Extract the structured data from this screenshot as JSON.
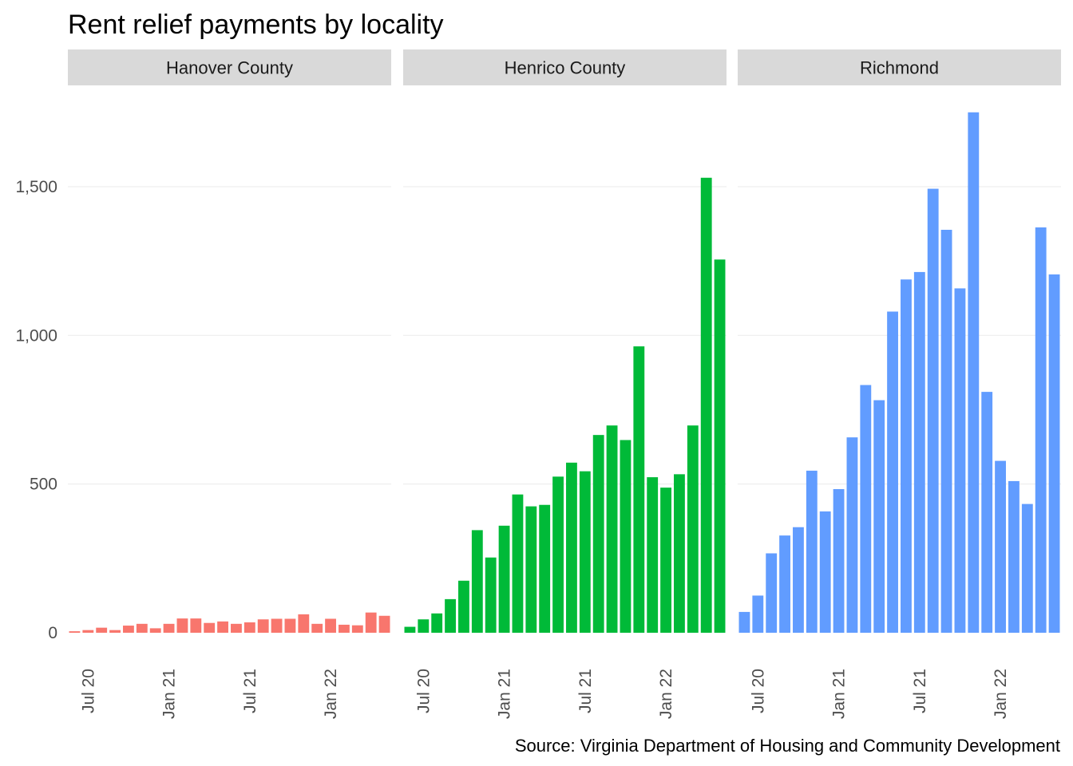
{
  "chart_data": {
    "type": "bar",
    "title": "Rent relief payments by locality",
    "caption": "Source: Virginia Department of Housing and Community Development",
    "xlabel": "",
    "ylabel": "",
    "ylim": [
      0,
      1800
    ],
    "y_ticks": [
      0,
      500,
      1000,
      1500
    ],
    "y_tick_labels": [
      "0",
      "500",
      "1,000",
      "1,500"
    ],
    "x_ticks": [
      "Jul 20",
      "Jan 21",
      "Jul 21",
      "Jan 22"
    ],
    "x_tick_index": [
      1,
      7,
      13,
      19
    ],
    "categories": [
      "Jun 20",
      "Jul 20",
      "Aug 20",
      "Sep 20",
      "Oct 20",
      "Nov 20",
      "Dec 20",
      "Jan 21",
      "Feb 21",
      "Mar 21",
      "Apr 21",
      "May 21",
      "Jun 21",
      "Jul 21",
      "Aug 21",
      "Sep 21",
      "Oct 21",
      "Nov 21",
      "Dec 21",
      "Jan 22",
      "Feb 22",
      "Mar 22",
      "Apr 22",
      "May 22"
    ],
    "grid": true,
    "legend": "none",
    "panels": [
      {
        "name": "Hanover County",
        "color": "#F8766D",
        "values": [
          5,
          9,
          17,
          9,
          24,
          30,
          15,
          30,
          48,
          48,
          33,
          38,
          30,
          35,
          45,
          47,
          47,
          62,
          30,
          47,
          27,
          25,
          68,
          57
        ]
      },
      {
        "name": "Henrico County",
        "color": "#00BA38",
        "values": [
          20,
          45,
          65,
          113,
          175,
          345,
          253,
          360,
          465,
          425,
          430,
          525,
          572,
          543,
          665,
          697,
          648,
          963,
          523,
          488,
          533,
          697,
          1530,
          1255
        ]
      },
      {
        "name": "Richmond",
        "color": "#619CFF",
        "values": [
          70,
          125,
          267,
          327,
          355,
          545,
          408,
          483,
          657,
          833,
          782,
          1080,
          1188,
          1213,
          1493,
          1355,
          1158,
          1750,
          810,
          578,
          510,
          433,
          1363,
          1205
        ]
      }
    ]
  }
}
